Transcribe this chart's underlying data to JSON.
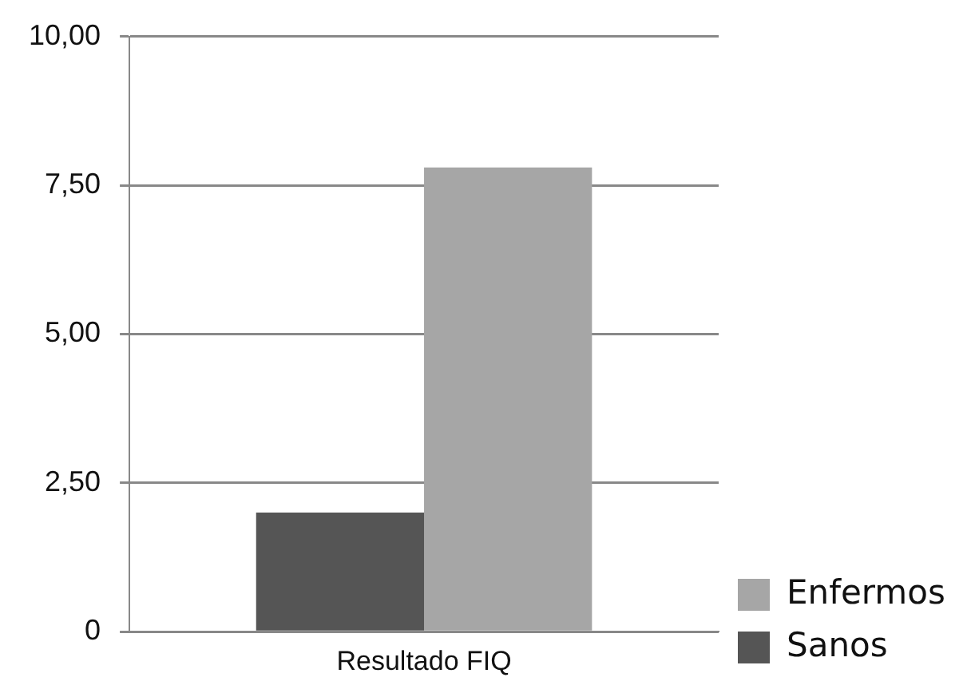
{
  "chart_data": {
    "type": "bar",
    "categories": [
      "Resultado FIQ"
    ],
    "series": [
      {
        "name": "Sanos",
        "color": "#555555",
        "values": [
          2.0
        ]
      },
      {
        "name": "Enfermos",
        "color": "#a6a6a6",
        "values": [
          7.8
        ]
      }
    ],
    "ylim": [
      0,
      10
    ],
    "yticks": [
      0,
      {
        "value": 2.5,
        "label": "2,50"
      },
      {
        "value": 5,
        "label": "5,00"
      },
      {
        "value": 7.5,
        "label": "7,50"
      },
      {
        "value": 10,
        "label": "10,00"
      }
    ],
    "grid": "y",
    "legend": "bottom right"
  }
}
